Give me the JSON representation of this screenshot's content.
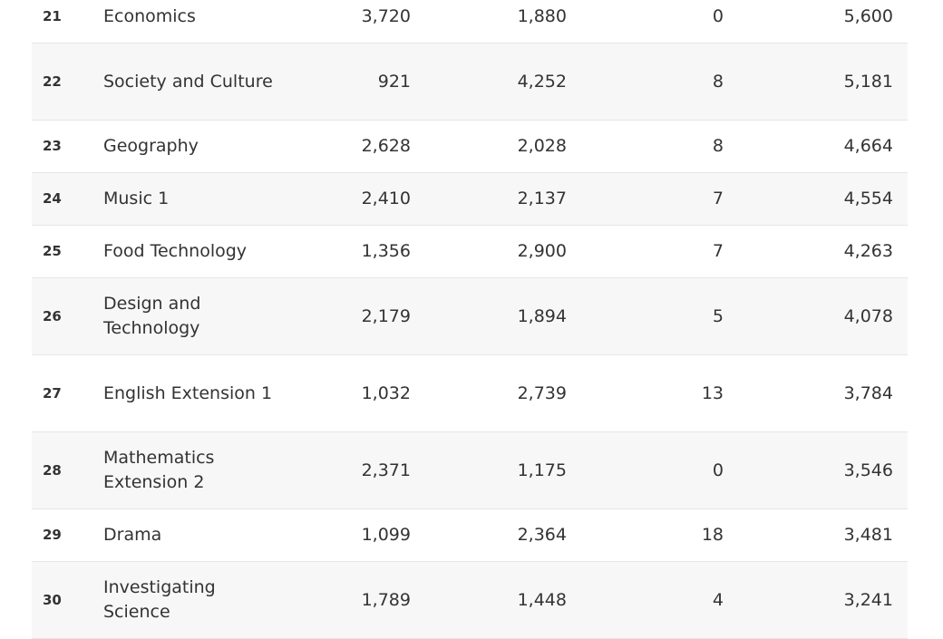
{
  "table": {
    "rows": [
      {
        "rank": "21",
        "subject": "Economics",
        "a": "3,720",
        "b": "1,880",
        "c": "0",
        "d": "5,600"
      },
      {
        "rank": "22",
        "subject": "Society and Culture",
        "a": "921",
        "b": "4,252",
        "c": "8",
        "d": "5,181"
      },
      {
        "rank": "23",
        "subject": "Geography",
        "a": "2,628",
        "b": "2,028",
        "c": "8",
        "d": "4,664"
      },
      {
        "rank": "24",
        "subject": "Music 1",
        "a": "2,410",
        "b": "2,137",
        "c": "7",
        "d": "4,554"
      },
      {
        "rank": "25",
        "subject": "Food Technology",
        "a": "1,356",
        "b": "2,900",
        "c": "7",
        "d": "4,263"
      },
      {
        "rank": "26",
        "subject": "Design and Technology",
        "a": "2,179",
        "b": "1,894",
        "c": "5",
        "d": "4,078"
      },
      {
        "rank": "27",
        "subject": "English Extension 1",
        "a": "1,032",
        "b": "2,739",
        "c": "13",
        "d": "3,784"
      },
      {
        "rank": "28",
        "subject": "Mathematics Extension 2",
        "a": "2,371",
        "b": "1,175",
        "c": "0",
        "d": "3,546"
      },
      {
        "rank": "29",
        "subject": "Drama",
        "a": "1,099",
        "b": "2,364",
        "c": "18",
        "d": "3,481"
      },
      {
        "rank": "30",
        "subject": "Investigating Science",
        "a": "1,789",
        "b": "1,448",
        "c": "4",
        "d": "3,241"
      }
    ]
  }
}
